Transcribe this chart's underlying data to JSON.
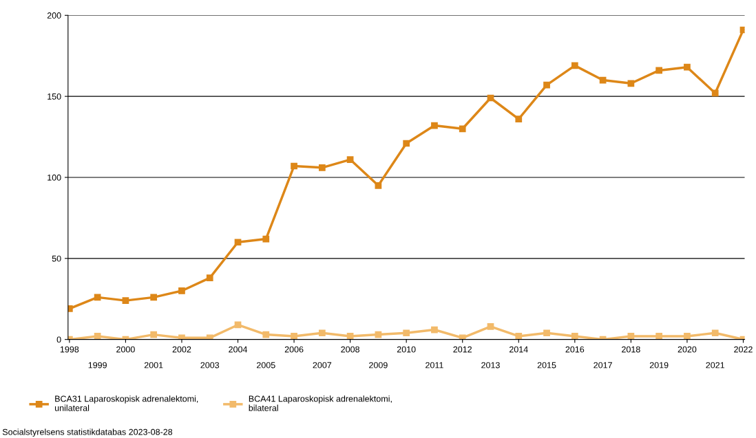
{
  "chart_data": {
    "type": "line",
    "categories": [
      "1998",
      "1999",
      "2000",
      "2001",
      "2002",
      "2003",
      "2004",
      "2005",
      "2006",
      "2007",
      "2008",
      "2009",
      "2010",
      "2011",
      "2012",
      "2013",
      "2014",
      "2015",
      "2016",
      "2017",
      "2018",
      "2019",
      "2020",
      "2021",
      "2022"
    ],
    "series": [
      {
        "name": "BCA31 Laparoskopisk adrenalektomi,\nunilateral",
        "color": "#dd8718",
        "values": [
          19,
          26,
          24,
          26,
          30,
          38,
          60,
          62,
          107,
          106,
          111,
          95,
          121,
          132,
          130,
          149,
          136,
          157,
          169,
          160,
          158,
          166,
          168,
          152,
          191
        ]
      },
      {
        "name": "BCA41 Laparoskopisk adrenalektomi,\nbilateral",
        "color": "#f2ba6a",
        "values": [
          0,
          2,
          0,
          3,
          1,
          1,
          9,
          3,
          2,
          4,
          2,
          3,
          4,
          6,
          1,
          8,
          2,
          4,
          2,
          0,
          2,
          2,
          2,
          4,
          0
        ]
      }
    ],
    "ylim": [
      0,
      200
    ],
    "yticks": [
      0,
      50,
      100,
      150,
      200
    ],
    "grid": "y",
    "marker": "square",
    "line_style": "solid",
    "legend": "bottom left",
    "annotations": [
      "Socialstyrelsens statistikdatabas 2023-08-28"
    ]
  }
}
